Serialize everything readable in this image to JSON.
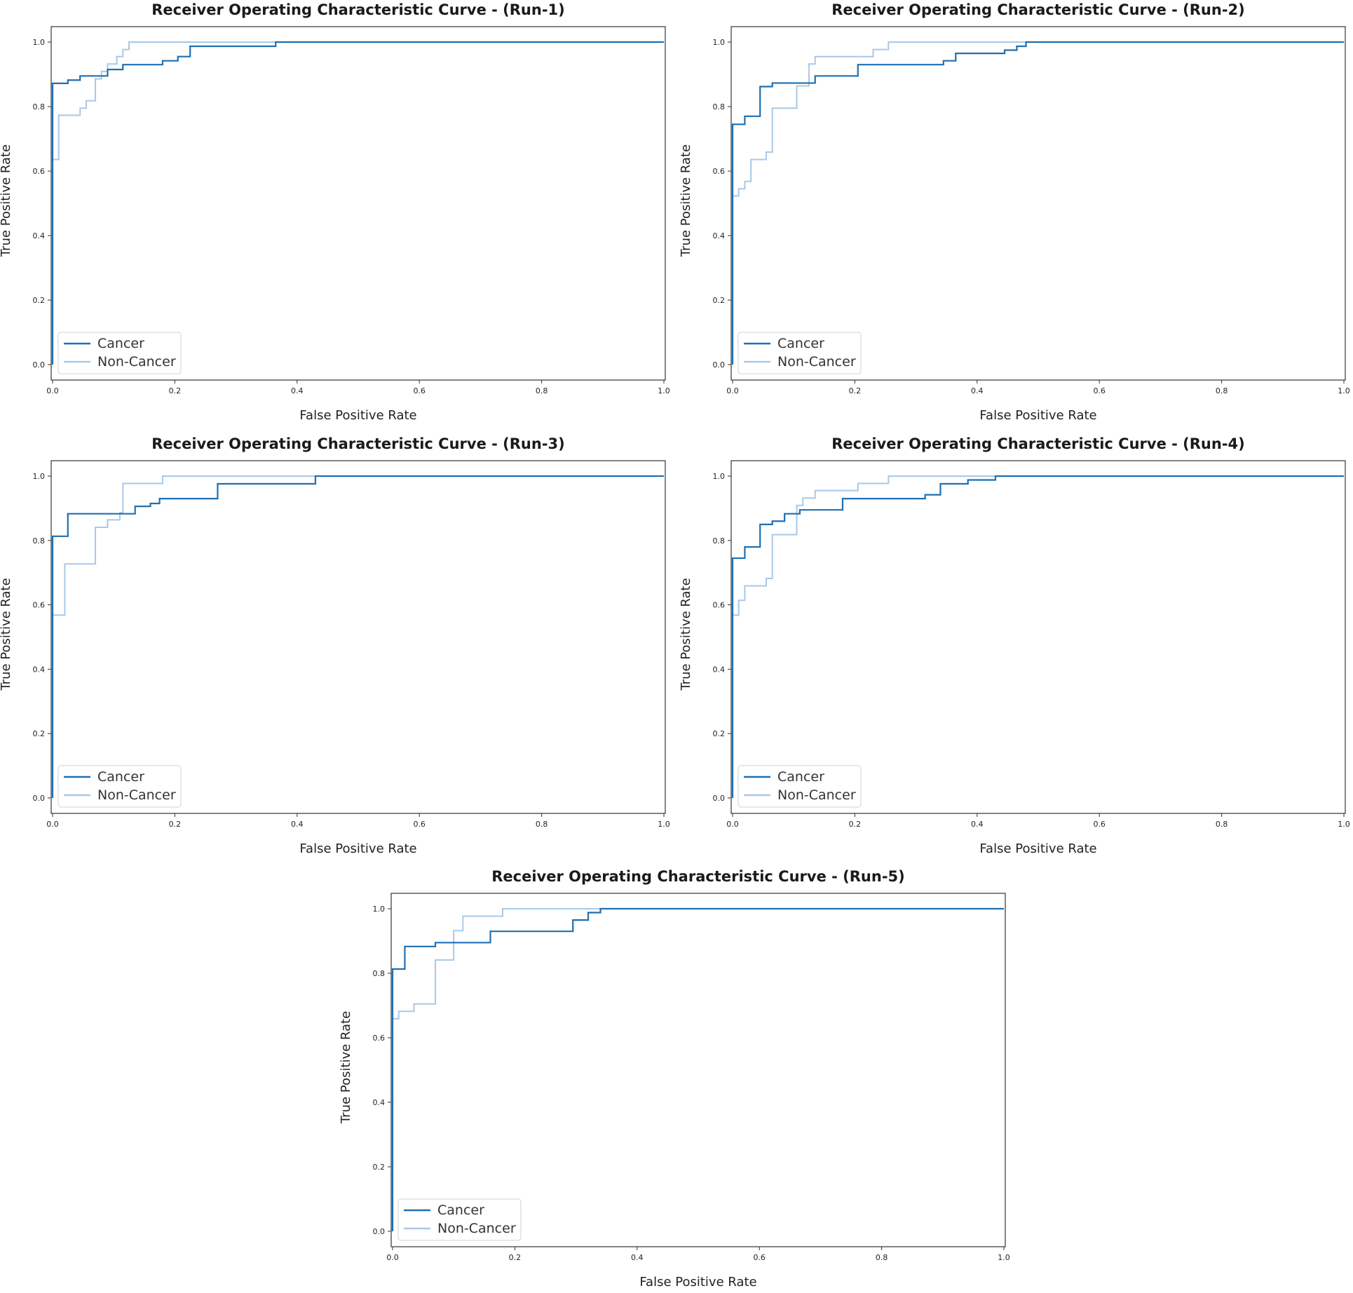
{
  "chart_data": [
    {
      "type": "line",
      "title": "Receiver Operating Characteristic Curve - (Run-1)",
      "xlabel": "False Positive Rate",
      "ylabel": "True Positive Rate",
      "xlim": [
        0,
        1
      ],
      "ylim": [
        0,
        1
      ],
      "xticks": [
        "0.0",
        "0.2",
        "0.4",
        "0.6",
        "0.8",
        "1.0"
      ],
      "yticks": [
        "0.0",
        "0.2",
        "0.4",
        "0.6",
        "0.8",
        "1.0"
      ],
      "legend_position": "lower-left",
      "series": [
        {
          "name": "Cancer",
          "color": "#1f6fb2",
          "x": [
            0.0,
            0.0,
            0.025,
            0.025,
            0.045,
            0.045,
            0.09,
            0.09,
            0.115,
            0.115,
            0.18,
            0.18,
            0.205,
            0.205,
            0.225,
            0.225,
            0.365,
            0.365,
            1.0
          ],
          "y": [
            0.0,
            0.872,
            0.872,
            0.882,
            0.882,
            0.895,
            0.895,
            0.915,
            0.915,
            0.93,
            0.93,
            0.942,
            0.942,
            0.955,
            0.955,
            0.987,
            0.987,
            1.0,
            1.0
          ]
        },
        {
          "name": "Non-Cancer",
          "color": "#a9c8e8",
          "x": [
            0.0,
            0.0,
            0.01,
            0.01,
            0.045,
            0.045,
            0.055,
            0.055,
            0.07,
            0.07,
            0.08,
            0.08,
            0.09,
            0.09,
            0.105,
            0.105,
            0.115,
            0.115,
            0.125,
            0.125,
            1.0
          ],
          "y": [
            0.0,
            0.636,
            0.636,
            0.773,
            0.773,
            0.795,
            0.795,
            0.818,
            0.818,
            0.886,
            0.886,
            0.909,
            0.909,
            0.932,
            0.932,
            0.955,
            0.955,
            0.977,
            0.977,
            1.0,
            1.0
          ]
        }
      ]
    },
    {
      "type": "line",
      "title": "Receiver Operating Characteristic Curve - (Run-2)",
      "xlabel": "False Positive Rate",
      "ylabel": "True Positive Rate",
      "xlim": [
        0,
        1
      ],
      "ylim": [
        0,
        1
      ],
      "xticks": [
        "0.0",
        "0.2",
        "0.4",
        "0.6",
        "0.8",
        "1.0"
      ],
      "yticks": [
        "0.0",
        "0.2",
        "0.4",
        "0.6",
        "0.8",
        "1.0"
      ],
      "legend_position": "lower-left",
      "series": [
        {
          "name": "Cancer",
          "color": "#1f6fb2",
          "x": [
            0.0,
            0.0,
            0.02,
            0.02,
            0.045,
            0.045,
            0.065,
            0.065,
            0.135,
            0.135,
            0.205,
            0.205,
            0.345,
            0.345,
            0.365,
            0.365,
            0.445,
            0.445,
            0.465,
            0.465,
            0.48,
            0.48,
            1.0
          ],
          "y": [
            0.0,
            0.745,
            0.745,
            0.77,
            0.77,
            0.862,
            0.862,
            0.873,
            0.873,
            0.895,
            0.895,
            0.93,
            0.93,
            0.942,
            0.942,
            0.965,
            0.965,
            0.975,
            0.975,
            0.987,
            0.987,
            1.0,
            1.0
          ]
        },
        {
          "name": "Non-Cancer",
          "color": "#a9c8e8",
          "x": [
            0.0,
            0.0,
            0.01,
            0.01,
            0.02,
            0.02,
            0.03,
            0.03,
            0.055,
            0.055,
            0.065,
            0.065,
            0.105,
            0.105,
            0.125,
            0.125,
            0.135,
            0.135,
            0.23,
            0.23,
            0.255,
            0.255,
            1.0
          ],
          "y": [
            0.0,
            0.523,
            0.523,
            0.545,
            0.545,
            0.568,
            0.568,
            0.636,
            0.636,
            0.659,
            0.659,
            0.795,
            0.795,
            0.864,
            0.864,
            0.932,
            0.932,
            0.955,
            0.955,
            0.977,
            0.977,
            1.0,
            1.0
          ]
        }
      ]
    },
    {
      "type": "line",
      "title": "Receiver Operating Characteristic Curve - (Run-3)",
      "xlabel": "False Positive Rate",
      "ylabel": "True Positive Rate",
      "xlim": [
        0,
        1
      ],
      "ylim": [
        0,
        1
      ],
      "xticks": [
        "0.0",
        "0.2",
        "0.4",
        "0.6",
        "0.8",
        "1.0"
      ],
      "yticks": [
        "0.0",
        "0.2",
        "0.4",
        "0.6",
        "0.8",
        "1.0"
      ],
      "legend_position": "lower-left",
      "series": [
        {
          "name": "Cancer",
          "color": "#1f6fb2",
          "x": [
            0.0,
            0.0,
            0.025,
            0.025,
            0.135,
            0.135,
            0.16,
            0.16,
            0.175,
            0.175,
            0.27,
            0.27,
            0.43,
            0.43,
            1.0
          ],
          "y": [
            0.0,
            0.813,
            0.813,
            0.883,
            0.883,
            0.906,
            0.906,
            0.915,
            0.915,
            0.93,
            0.93,
            0.976,
            0.976,
            1.0,
            1.0
          ]
        },
        {
          "name": "Non-Cancer",
          "color": "#a9c8e8",
          "x": [
            0.0,
            0.0,
            0.02,
            0.02,
            0.07,
            0.07,
            0.09,
            0.09,
            0.11,
            0.11,
            0.115,
            0.115,
            0.18,
            0.18,
            1.0
          ],
          "y": [
            0.0,
            0.568,
            0.568,
            0.727,
            0.727,
            0.841,
            0.841,
            0.864,
            0.864,
            0.886,
            0.886,
            0.977,
            0.977,
            1.0,
            1.0
          ]
        }
      ]
    },
    {
      "type": "line",
      "title": "Receiver Operating Characteristic Curve - (Run-4)",
      "xlabel": "False Positive Rate",
      "ylabel": "True Positive Rate",
      "xlim": [
        0,
        1
      ],
      "ylim": [
        0,
        1
      ],
      "xticks": [
        "0.0",
        "0.2",
        "0.4",
        "0.6",
        "0.8",
        "1.0"
      ],
      "yticks": [
        "0.0",
        "0.2",
        "0.4",
        "0.6",
        "0.8",
        "1.0"
      ],
      "legend_position": "lower-left",
      "series": [
        {
          "name": "Cancer",
          "color": "#1f6fb2",
          "x": [
            0.0,
            0.0,
            0.02,
            0.02,
            0.045,
            0.045,
            0.065,
            0.065,
            0.085,
            0.085,
            0.11,
            0.11,
            0.18,
            0.18,
            0.315,
            0.315,
            0.34,
            0.34,
            0.385,
            0.385,
            0.43,
            0.43,
            1.0
          ],
          "y": [
            0.0,
            0.745,
            0.745,
            0.78,
            0.78,
            0.85,
            0.85,
            0.86,
            0.86,
            0.883,
            0.883,
            0.895,
            0.895,
            0.93,
            0.93,
            0.942,
            0.942,
            0.976,
            0.976,
            0.988,
            0.988,
            1.0,
            1.0
          ]
        },
        {
          "name": "Non-Cancer",
          "color": "#a9c8e8",
          "x": [
            0.0,
            0.0,
            0.01,
            0.01,
            0.02,
            0.02,
            0.055,
            0.055,
            0.065,
            0.065,
            0.105,
            0.105,
            0.115,
            0.115,
            0.135,
            0.135,
            0.205,
            0.205,
            0.255,
            0.255,
            1.0
          ],
          "y": [
            0.0,
            0.568,
            0.568,
            0.614,
            0.614,
            0.659,
            0.659,
            0.682,
            0.682,
            0.818,
            0.818,
            0.909,
            0.909,
            0.932,
            0.932,
            0.955,
            0.955,
            0.977,
            0.977,
            1.0,
            1.0
          ]
        }
      ]
    },
    {
      "type": "line",
      "title": "Receiver Operating Characteristic Curve - (Run-5)",
      "xlabel": "False Positive Rate",
      "ylabel": "True Positive Rate",
      "xlim": [
        0,
        1
      ],
      "ylim": [
        0,
        1
      ],
      "xticks": [
        "0.0",
        "0.2",
        "0.4",
        "0.6",
        "0.8",
        "1.0"
      ],
      "yticks": [
        "0.0",
        "0.2",
        "0.4",
        "0.6",
        "0.8",
        "1.0"
      ],
      "legend_position": "lower-left",
      "series": [
        {
          "name": "Cancer",
          "color": "#1f6fb2",
          "x": [
            0.0,
            0.0,
            0.02,
            0.02,
            0.07,
            0.07,
            0.16,
            0.16,
            0.295,
            0.295,
            0.32,
            0.32,
            0.34,
            0.34,
            1.0
          ],
          "y": [
            0.0,
            0.813,
            0.813,
            0.883,
            0.883,
            0.895,
            0.895,
            0.93,
            0.93,
            0.965,
            0.965,
            0.988,
            0.988,
            1.0,
            1.0
          ]
        },
        {
          "name": "Non-Cancer",
          "color": "#a9c8e8",
          "x": [
            0.0,
            0.0,
            0.01,
            0.01,
            0.035,
            0.035,
            0.07,
            0.07,
            0.1,
            0.1,
            0.115,
            0.115,
            0.18,
            0.18,
            1.0
          ],
          "y": [
            0.0,
            0.659,
            0.659,
            0.682,
            0.682,
            0.705,
            0.705,
            0.841,
            0.841,
            0.932,
            0.932,
            0.977,
            0.977,
            1.0,
            1.0
          ]
        }
      ]
    }
  ]
}
